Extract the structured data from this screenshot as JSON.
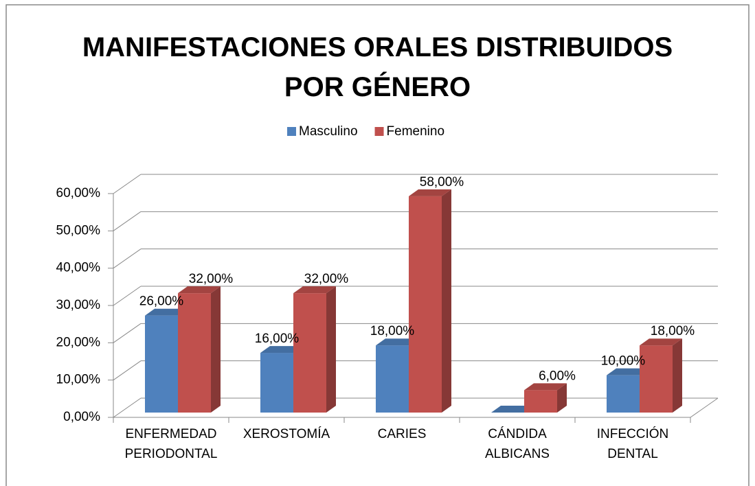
{
  "chart_data": {
    "type": "bar3d",
    "title": "MANIFESTACIONES ORALES DISTRIBUIDOS\nPOR GÉNERO",
    "categories": [
      "ENFERMEDAD\nPERIODONTAL",
      "XEROSTOMÍA",
      "CARIES",
      "CÁNDIDA\nALBICANS",
      "INFECCIÓN\nDENTAL"
    ],
    "series": [
      {
        "name": "Masculino",
        "color": "#4f81bd",
        "values": [
          26,
          16,
          18,
          0,
          10
        ],
        "value_labels": [
          "26,00%",
          "16,00%",
          "18,00%",
          null,
          "10,00%"
        ]
      },
      {
        "name": "Femenino",
        "color": "#c0504d",
        "values": [
          32,
          32,
          58,
          6,
          18
        ],
        "value_labels": [
          "32,00%",
          "32,00%",
          "58,00%",
          "6,00%",
          "18,00%"
        ]
      }
    ],
    "ylim": [
      0,
      60
    ],
    "yticks": [
      {
        "value": 0,
        "label": "0,00%"
      },
      {
        "value": 10,
        "label": "10,00%"
      },
      {
        "value": 20,
        "label": "20,00%"
      },
      {
        "value": 30,
        "label": "30,00%"
      },
      {
        "value": 40,
        "label": "40,00%"
      },
      {
        "value": 50,
        "label": "50,00%"
      },
      {
        "value": 60,
        "label": "60,00%"
      }
    ],
    "grid": true,
    "legend": "top"
  }
}
